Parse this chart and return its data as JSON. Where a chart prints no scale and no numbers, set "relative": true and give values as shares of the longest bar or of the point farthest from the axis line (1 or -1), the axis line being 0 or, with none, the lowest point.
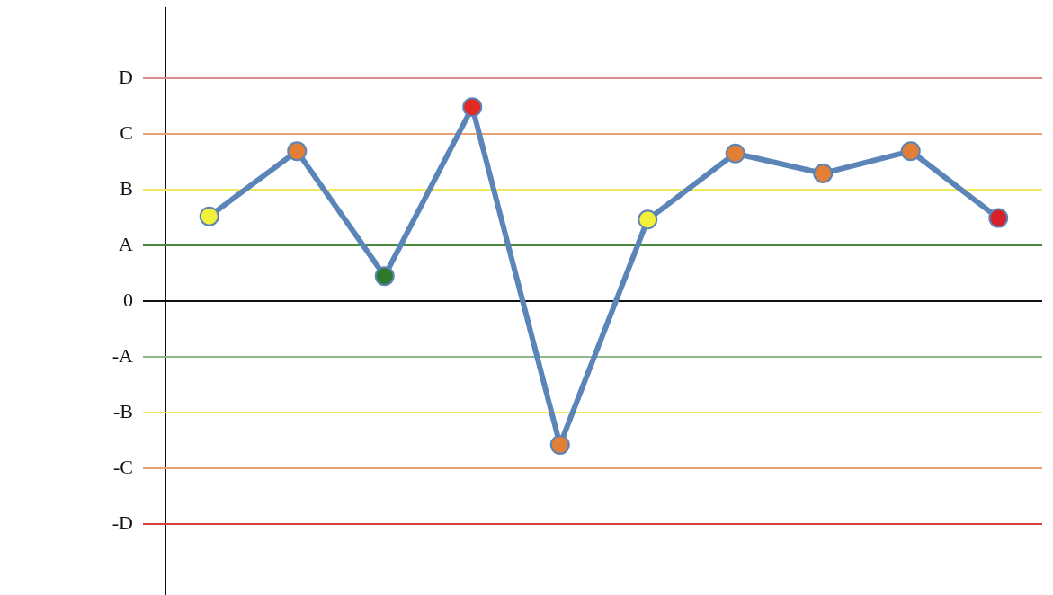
{
  "chart_data": {
    "type": "line",
    "relative": true,
    "categories": [
      null,
      null,
      null,
      null,
      null,
      null,
      null,
      null,
      null,
      null
    ],
    "series": [
      {
        "color": "#5b84b8",
        "values": [
          0.437,
          0.773,
          0.129,
          1,
          -0.741,
          0.42,
          0.761,
          0.658,
          0.773,
          0.428
        ],
        "colors": [
          "#f2f03a",
          "#e07f35",
          "#2f7a2a",
          "#e02a22",
          "#e07f35",
          "#f2f03a",
          "#e07f35",
          "#e07f35",
          "#e07f35",
          "#d8202a"
        ]
      }
    ],
    "ref_lines": [
      {
        "axis": "y",
        "value": 1.149,
        "label": "D",
        "color": "#d98a8a"
      },
      {
        "axis": "y",
        "value": 0.862,
        "label": "C",
        "color": "#e8a070"
      },
      {
        "axis": "y",
        "value": 0.575,
        "label": "B",
        "color": "#f0e860"
      },
      {
        "axis": "y",
        "value": 0.287,
        "label": "A",
        "color": "#4a8a3a"
      },
      {
        "axis": "y",
        "value": 0,
        "label": "0",
        "color": "#111111"
      },
      {
        "axis": "y",
        "value": -0.287,
        "label": "-A",
        "color": "#8ab88a"
      },
      {
        "axis": "y",
        "value": -0.575,
        "label": "-B",
        "color": "#f0e860"
      },
      {
        "axis": "y",
        "value": -0.862,
        "label": "-C",
        "color": "#e8a070"
      },
      {
        "axis": "y",
        "value": -1.149,
        "label": "-D",
        "color": "#d84040"
      }
    ],
    "legend": false,
    "marker": "circle",
    "line_style": "solid"
  }
}
